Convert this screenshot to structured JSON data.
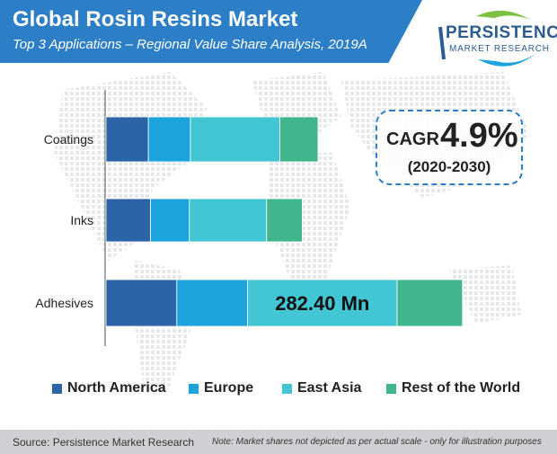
{
  "header": {
    "title": "Global Rosin Resins Market",
    "subtitle": "Top 3 Applications – Regional Value Share Analysis, 2019A"
  },
  "logo": {
    "line1": "PERSISTENCE",
    "line2": "MARKET RESEARCH"
  },
  "cagr": {
    "label": "CAGR",
    "value": "4.9%",
    "period": "(2020-2030)"
  },
  "chart_data": {
    "type": "bar",
    "orientation": "horizontal",
    "stacked": true,
    "categories": [
      "Coatings",
      "Inks",
      "Adhesives"
    ],
    "series": [
      {
        "name": "North America",
        "color": "#2b65a8",
        "values": [
          0.118,
          0.124,
          0.197
        ]
      },
      {
        "name": "Europe",
        "color": "#1ea4dd",
        "values": [
          0.117,
          0.108,
          0.197
        ]
      },
      {
        "name": "East Asia",
        "color": "#43c6d3",
        "values": [
          0.249,
          0.215,
          0.416
        ]
      },
      {
        "name": "Rest of the World",
        "color": "#3fb68c",
        "values": [
          0.106,
          0.099,
          0.182
        ]
      }
    ],
    "annotations": [
      {
        "category": "Adhesives",
        "text": "282.40 Mn"
      }
    ],
    "title": "",
    "xlabel": "",
    "ylabel": "",
    "legend_position": "bottom",
    "grid": false
  },
  "footer": {
    "source": "Source: Persistence Market Research",
    "note": "Note: Market shares not depicted as per actual scale - only for illustration purposes"
  }
}
